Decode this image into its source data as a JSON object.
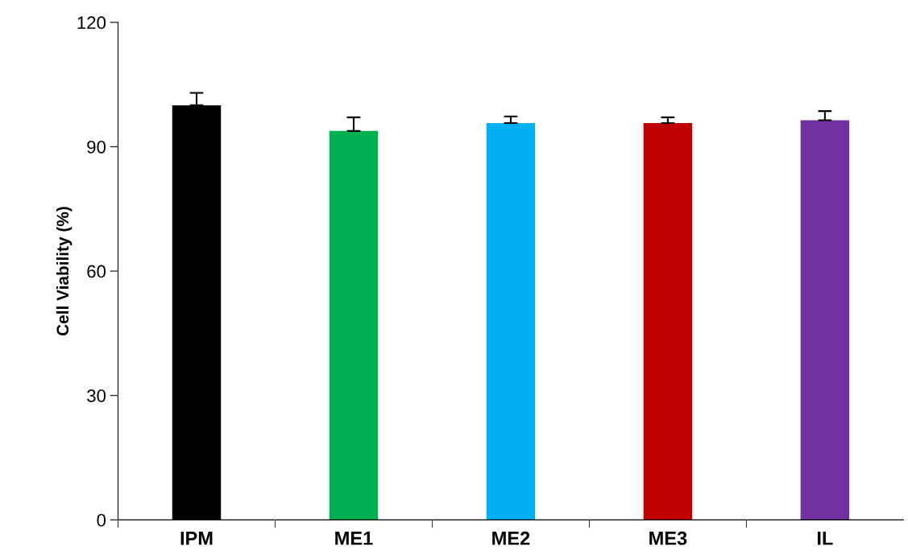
{
  "chart_data": {
    "type": "bar",
    "ylabel": "Cell Viability (%)",
    "categories": [
      "IPM",
      "ME1",
      "ME2",
      "ME3",
      "IL"
    ],
    "values": [
      100,
      93.8,
      95.7,
      95.7,
      96.4
    ],
    "colors": [
      "#000000",
      "#00b050",
      "#00b0f0",
      "#c00000",
      "#7030a0"
    ],
    "errors": [
      [
        100,
        103
      ],
      [
        93.8,
        97.1
      ],
      [
        95.7,
        97.3
      ],
      [
        95.7,
        97.1
      ],
      [
        96.4,
        98.6
      ]
    ],
    "ylim": [
      0,
      120
    ],
    "yticks": [
      0,
      30,
      60,
      90,
      120
    ],
    "grid": false,
    "legend": false
  }
}
